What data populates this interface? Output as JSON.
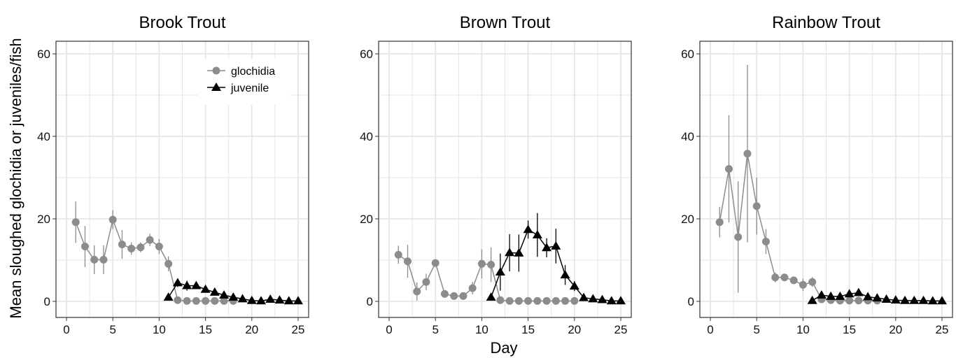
{
  "figure": {
    "ylabel": "Mean sloughed glochidia or juveniles/fish",
    "xlabel": "Day"
  },
  "legend": {
    "position": "top-right of first panel",
    "items": [
      {
        "label": "glochidia",
        "marker": "circle",
        "color": "#8c8c8c"
      },
      {
        "label": "juvenile",
        "marker": "triangle",
        "color": "#000000"
      }
    ]
  },
  "colors": {
    "glochidia": "#8c8c8c",
    "juvenile": "#000000",
    "grid": "#e6e6e6",
    "border": "#333333"
  },
  "chart_data": [
    {
      "type": "line",
      "title": "Brook Trout",
      "xlim": [
        0,
        25
      ],
      "ylim": [
        0,
        60
      ],
      "xticks": [
        0,
        5,
        10,
        15,
        20,
        25
      ],
      "yticks": [
        0,
        20,
        40,
        60
      ],
      "grid": true,
      "series": [
        {
          "name": "glochidia",
          "x": [
            1,
            2,
            3,
            4,
            5,
            6,
            7,
            8,
            9,
            10,
            11,
            12,
            13,
            14,
            15,
            16,
            17,
            18
          ],
          "y": [
            19.2,
            13.3,
            10.1,
            10.1,
            19.8,
            13.8,
            12.8,
            13.1,
            14.9,
            13.3,
            9.1,
            0.3,
            0.1,
            0.1,
            0.1,
            0.1,
            0.1,
            0.1
          ],
          "err": [
            5,
            5,
            3.5,
            3.5,
            2.3,
            3.5,
            1.5,
            1.2,
            1.5,
            1.8,
            1.8,
            0.3,
            0.2,
            0.2,
            0.2,
            0.2,
            0.2,
            0.2
          ]
        },
        {
          "name": "juvenile",
          "x": [
            11,
            12,
            13,
            14,
            15,
            16,
            17,
            18,
            19,
            20,
            21,
            22,
            23,
            24,
            25
          ],
          "y": [
            1.0,
            4.5,
            3.8,
            3.8,
            2.9,
            2.2,
            1.5,
            1.0,
            0.6,
            0.2,
            0.1,
            0.5,
            0.3,
            0.1,
            0.1
          ],
          "err": [
            0.4,
            1.0,
            1.2,
            0.8,
            0.7,
            0.6,
            0.4,
            0.4,
            0.3,
            0.2,
            0.1,
            0.3,
            0.2,
            0.1,
            0.1
          ]
        }
      ]
    },
    {
      "type": "line",
      "title": "Brown Trout",
      "xlim": [
        0,
        25
      ],
      "ylim": [
        0,
        60
      ],
      "xticks": [
        0,
        5,
        10,
        15,
        20,
        25
      ],
      "yticks": [
        0,
        20,
        40,
        60
      ],
      "grid": true,
      "series": [
        {
          "name": "glochidia",
          "x": [
            1,
            2,
            3,
            4,
            5,
            6,
            7,
            8,
            9,
            10,
            11,
            12,
            13,
            14,
            15,
            16,
            17,
            18,
            19,
            20
          ],
          "y": [
            11.3,
            9.7,
            2.4,
            4.7,
            9.3,
            1.8,
            1.3,
            1.3,
            3.2,
            9.1,
            8.9,
            0.3,
            0.1,
            0.1,
            0.1,
            0.1,
            0.1,
            0.1,
            0.1,
            0.1
          ],
          "err": [
            2.2,
            4,
            2.2,
            2,
            0.3,
            0.3,
            0.3,
            0.3,
            1.5,
            3.5,
            4.2,
            0.2,
            0.1,
            0.1,
            0.1,
            0.1,
            0.1,
            0.1,
            0.1,
            0.1
          ]
        },
        {
          "name": "juvenile",
          "x": [
            11,
            12,
            13,
            14,
            15,
            16,
            17,
            18,
            19,
            20,
            21,
            22,
            23,
            24,
            25
          ],
          "y": [
            1.0,
            7.1,
            11.8,
            11.7,
            17.4,
            16.1,
            13.0,
            13.4,
            6.4,
            3.7,
            0.9,
            0.6,
            0.4,
            0.1,
            0.1
          ],
          "err": [
            0.5,
            4.5,
            4.5,
            4.5,
            2.2,
            5.3,
            2.3,
            4.2,
            2.4,
            1.2,
            0.4,
            0.3,
            0.3,
            0.1,
            0.1
          ]
        }
      ]
    },
    {
      "type": "line",
      "title": "Rainbow Trout",
      "xlim": [
        0,
        25
      ],
      "ylim": [
        0,
        60
      ],
      "xticks": [
        0,
        5,
        10,
        15,
        20,
        25
      ],
      "yticks": [
        0,
        20,
        40,
        60
      ],
      "grid": true,
      "series": [
        {
          "name": "glochidia",
          "x": [
            1,
            2,
            3,
            4,
            5,
            6,
            7,
            8,
            9,
            10,
            11,
            12,
            13,
            14,
            15,
            16,
            17,
            18
          ],
          "y": [
            19.2,
            32.1,
            15.6,
            35.8,
            23.1,
            14.5,
            5.8,
            5.8,
            5.1,
            4.0,
            4.7,
            0.5,
            0.3,
            0.2,
            0.2,
            0.2,
            0.2,
            0.2
          ],
          "err": [
            3.7,
            13,
            13.5,
            21.5,
            6.9,
            3,
            1.2,
            0.8,
            0.8,
            1.5,
            1.2,
            0.3,
            0.2,
            0.2,
            0.2,
            0.2,
            0.2,
            0.2
          ]
        },
        {
          "name": "juvenile",
          "x": [
            11,
            12,
            13,
            14,
            15,
            16,
            17,
            18,
            19,
            20,
            21,
            22,
            23,
            24,
            25
          ],
          "y": [
            0.2,
            1.5,
            1.2,
            1.2,
            1.8,
            2.1,
            1.1,
            0.8,
            0.5,
            0.3,
            0.2,
            0.2,
            0.2,
            0.1,
            0.1
          ],
          "err": [
            0.1,
            0.7,
            0.5,
            0.5,
            0.7,
            0.8,
            0.5,
            0.4,
            0.3,
            0.2,
            0.1,
            0.1,
            0.1,
            0.1,
            0.1
          ]
        }
      ]
    }
  ]
}
